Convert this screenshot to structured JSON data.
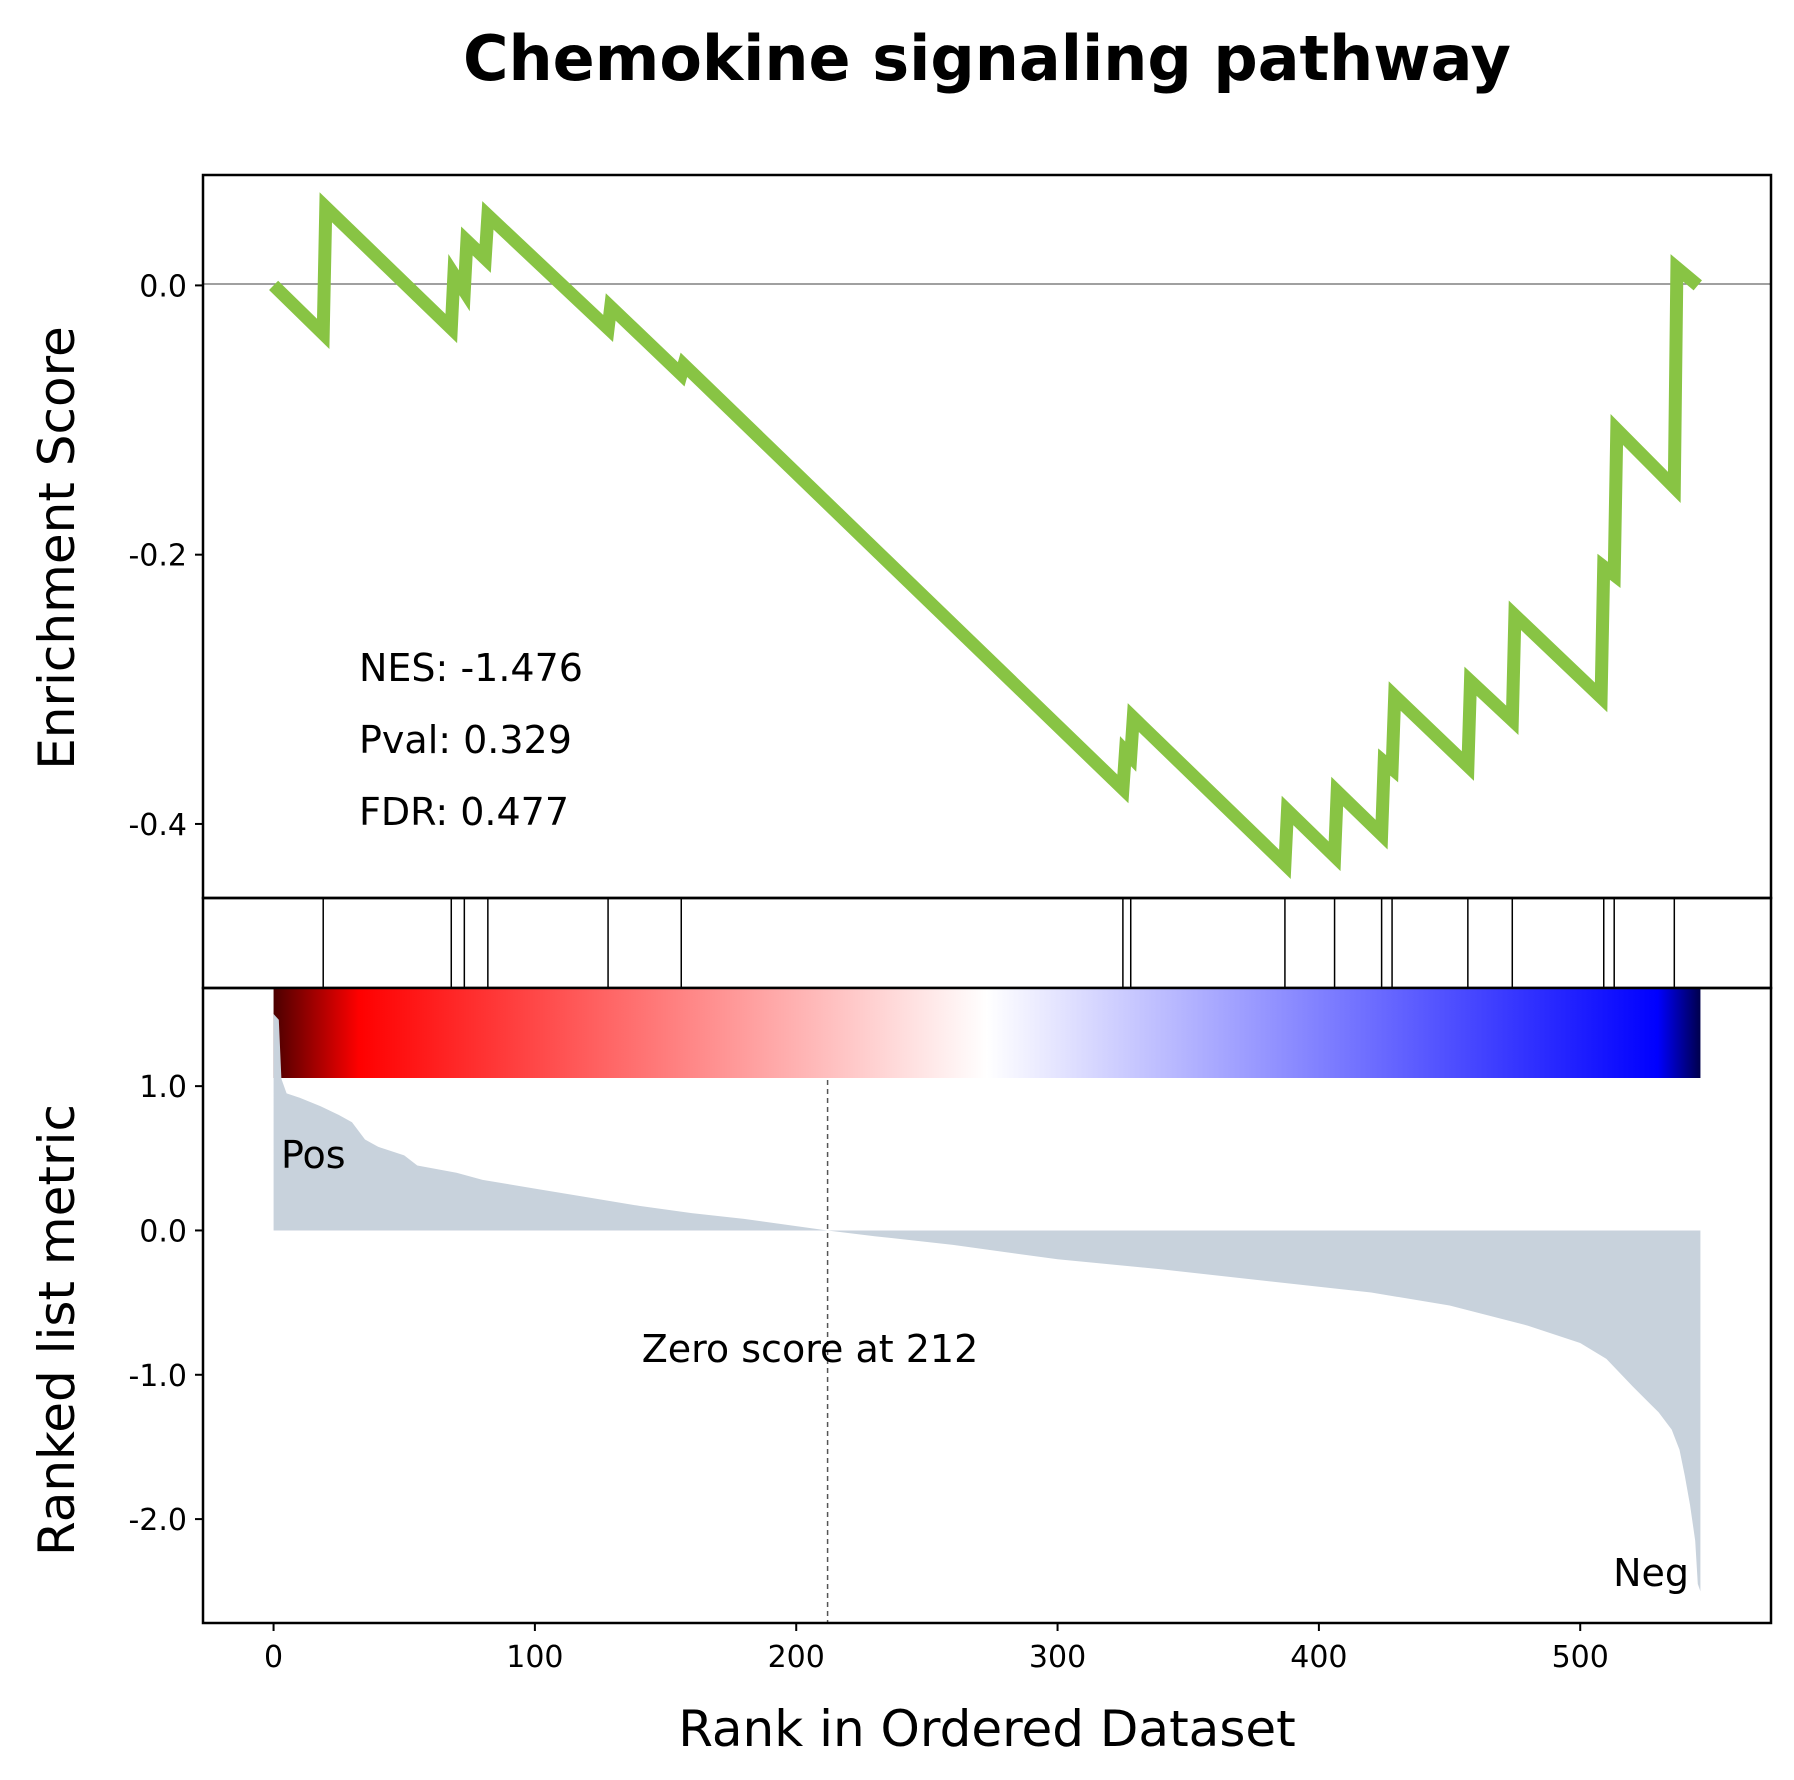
{
  "chart_data": {
    "type": "line",
    "title": "Chemokine signaling pathway",
    "xlabel": "Rank in Ordered Dataset",
    "xlim": [
      -27,
      573
    ],
    "xticks": [
      0,
      100,
      200,
      300,
      400,
      500
    ],
    "xtick_labels": [
      "0",
      "100",
      "200",
      "300",
      "400",
      "500"
    ],
    "enrichment": {
      "ylabel": "Enrichment Score",
      "ylim": [
        -0.455,
        0.082
      ],
      "yticks": [
        0.0,
        -0.2,
        -0.4
      ],
      "ytick_labels": [
        "0.0",
        "-0.2",
        "-0.4"
      ],
      "line_color": "#88c444",
      "zero_line": true,
      "points": [
        [
          0,
          0.0
        ],
        [
          19,
          -0.036
        ],
        [
          20,
          0.058
        ],
        [
          68,
          -0.032
        ],
        [
          69,
          0.008
        ],
        [
          73,
          -0.004
        ],
        [
          74,
          0.033
        ],
        [
          81,
          0.02
        ],
        [
          82,
          0.052
        ],
        [
          128,
          -0.032
        ],
        [
          129,
          -0.016
        ],
        [
          156,
          -0.066
        ],
        [
          157,
          -0.059
        ],
        [
          325,
          -0.374
        ],
        [
          326,
          -0.346
        ],
        [
          328,
          -0.35
        ],
        [
          329,
          -0.321
        ],
        [
          387,
          -0.43
        ],
        [
          388,
          -0.39
        ],
        [
          406,
          -0.424
        ],
        [
          407,
          -0.376
        ],
        [
          424,
          -0.408
        ],
        [
          425,
          -0.354
        ],
        [
          428,
          -0.359
        ],
        [
          429,
          -0.305
        ],
        [
          457,
          -0.357
        ],
        [
          458,
          -0.294
        ],
        [
          474,
          -0.323
        ],
        [
          475,
          -0.245
        ],
        [
          508,
          -0.306
        ],
        [
          509,
          -0.209
        ],
        [
          513,
          -0.215
        ],
        [
          514,
          -0.107
        ],
        [
          536,
          -0.15
        ],
        [
          537,
          0.013
        ],
        [
          545,
          0.0
        ]
      ]
    },
    "stats": [
      "NES: -1.476",
      "Pval: 0.329",
      "FDR: 0.477"
    ],
    "hits": [
      19,
      68,
      73,
      82,
      128,
      156,
      325,
      328,
      387,
      406,
      424,
      428,
      457,
      474,
      509,
      513,
      536
    ],
    "colorbar": {
      "colormap": "seismic",
      "colors": [
        "#4c0000",
        "#ff0000",
        "#ffffff",
        "#0000ff",
        "#00004c"
      ]
    },
    "ranked_metric": {
      "ylabel": "Ranked list metric",
      "ylim": [
        -2.72,
        1.68
      ],
      "yticks": [
        1.0,
        0.0,
        -1.0,
        -2.0
      ],
      "ytick_labels": [
        "1.0",
        "0.0",
        "-1.0",
        "-2.0"
      ],
      "fill_color": "#c8d2dc",
      "points": [
        [
          0,
          1.5
        ],
        [
          2,
          1.46
        ],
        [
          3,
          1.05
        ],
        [
          5,
          0.95
        ],
        [
          10,
          0.92
        ],
        [
          18,
          0.86
        ],
        [
          25,
          0.8
        ],
        [
          30,
          0.75
        ],
        [
          35,
          0.63
        ],
        [
          40,
          0.58
        ],
        [
          50,
          0.52
        ],
        [
          55,
          0.45
        ],
        [
          70,
          0.4
        ],
        [
          80,
          0.35
        ],
        [
          100,
          0.29
        ],
        [
          120,
          0.23
        ],
        [
          140,
          0.17
        ],
        [
          160,
          0.12
        ],
        [
          180,
          0.08
        ],
        [
          200,
          0.03
        ],
        [
          212,
          0.0
        ],
        [
          230,
          -0.04
        ],
        [
          260,
          -0.1
        ],
        [
          300,
          -0.2
        ],
        [
          340,
          -0.27
        ],
        [
          380,
          -0.35
        ],
        [
          420,
          -0.43
        ],
        [
          450,
          -0.52
        ],
        [
          480,
          -0.66
        ],
        [
          500,
          -0.78
        ],
        [
          510,
          -0.89
        ],
        [
          520,
          -1.08
        ],
        [
          530,
          -1.26
        ],
        [
          535,
          -1.38
        ],
        [
          538,
          -1.52
        ],
        [
          540,
          -1.7
        ],
        [
          542,
          -1.9
        ],
        [
          544,
          -2.15
        ],
        [
          545,
          -2.45
        ],
        [
          546,
          -2.5
        ]
      ],
      "zero_line_x": 212,
      "zero_label": "Zero score at 212",
      "pos_label": "Pos",
      "neg_label": "Neg",
      "pos_color": "#ff0000",
      "neg_color": "#0000ff"
    }
  }
}
